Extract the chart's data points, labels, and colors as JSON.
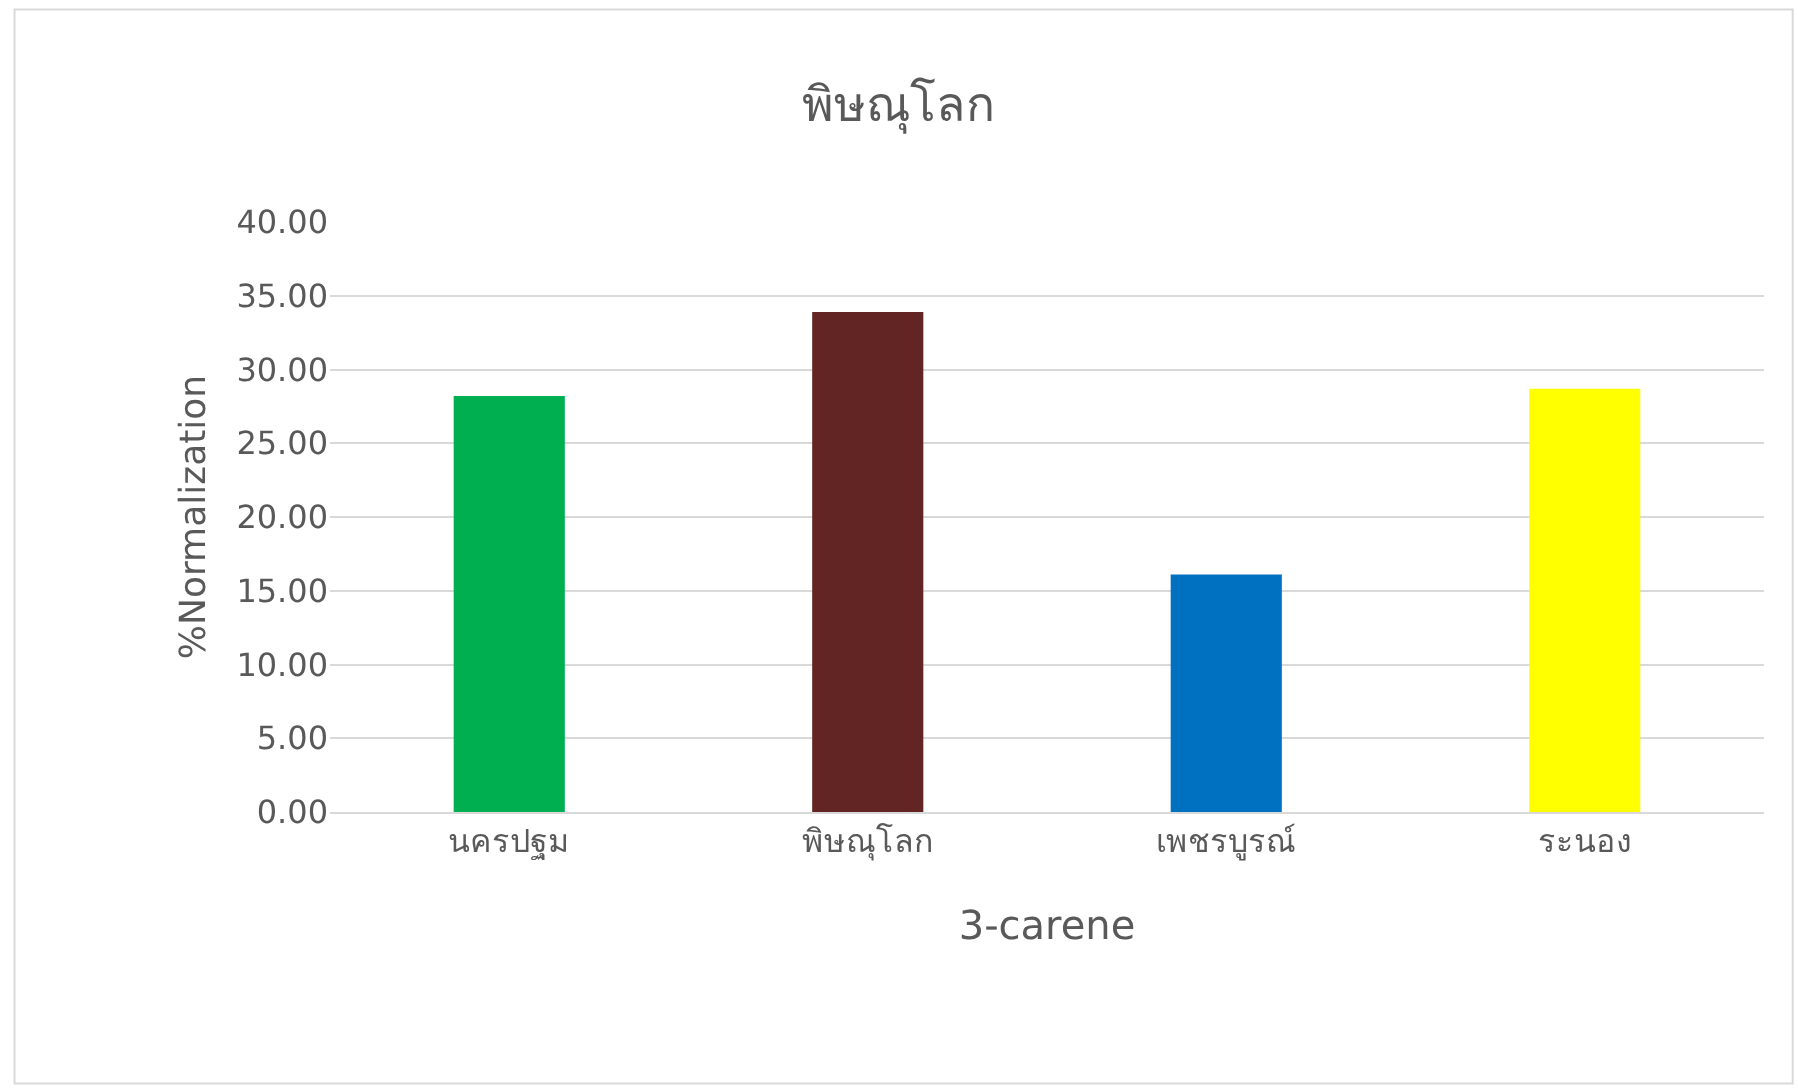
{
  "chart_data": {
    "type": "bar",
    "title": "พิษณุโลก",
    "xlabel": "3-carene",
    "ylabel": "%Normalization",
    "categories": [
      "นครปฐม",
      "พิษณุโลก",
      "เพชรบูรณ์",
      "ระนอง"
    ],
    "values": [
      28.2,
      33.9,
      16.1,
      28.7
    ],
    "colors": [
      "#00b050",
      "#632523",
      "#0070c0",
      "#ffff00"
    ],
    "ylim": [
      0,
      40
    ],
    "yticks": [
      {
        "value": 0,
        "label": "0.00"
      },
      {
        "value": 5,
        "label": "5.00"
      },
      {
        "value": 10,
        "label": "10.00"
      },
      {
        "value": 15,
        "label": "15.00"
      },
      {
        "value": 20,
        "label": "20.00"
      },
      {
        "value": 25,
        "label": "25.00"
      },
      {
        "value": 30,
        "label": "30.00"
      },
      {
        "value": 35,
        "label": "35.00"
      },
      {
        "value": 40,
        "label": "40.00"
      }
    ],
    "grid": "y",
    "legend": false
  }
}
